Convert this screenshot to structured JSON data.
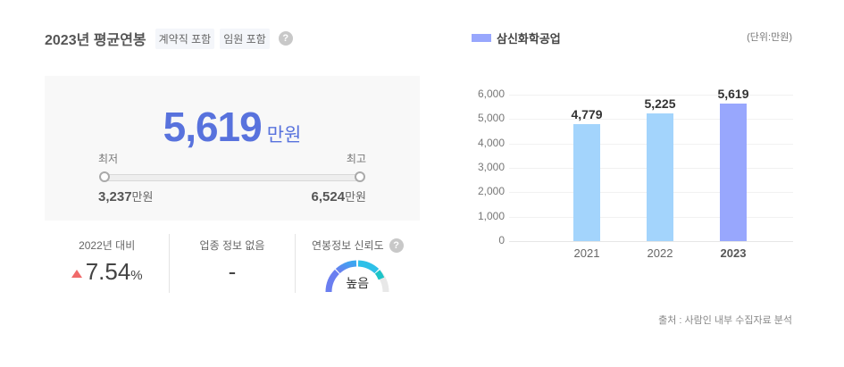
{
  "header": {
    "title": "2023년 평균연봉",
    "tags": [
      "계약직 포함",
      "임원 포함"
    ],
    "help_icon": "?"
  },
  "summary": {
    "average": "5,619",
    "average_unit": "만원",
    "min_label": "최저",
    "max_label": "최고",
    "min_value": "3,237",
    "max_value": "6,524",
    "value_unit": "만원"
  },
  "stats": {
    "yoy_label": "2022년 대비",
    "yoy_value": "7.54",
    "yoy_unit": "%",
    "yoy_direction": "up",
    "industry_label": "업종 정보 없음",
    "industry_value": "-",
    "reliability_label": "연봉정보 신뢰도",
    "reliability_value": "높음"
  },
  "chart_panel": {
    "legend_label": "삼신화학공업",
    "unit_label": "(단위:만원)",
    "source": "출처 : 사람인 내부 수집자료 분석"
  },
  "colors": {
    "accent": "#5872dd",
    "bar_past": "#a3d4fc",
    "bar_current": "#98a7fd",
    "up_arrow": "#f06a6a"
  },
  "chart_data": {
    "type": "bar",
    "title": "삼신화학공업",
    "categories": [
      "2021",
      "2022",
      "2023"
    ],
    "values": [
      4779,
      5225,
      5619
    ],
    "value_labels": [
      "4,779",
      "5,225",
      "5,619"
    ],
    "xlabel": "",
    "ylabel": "(단위:만원)",
    "ylim": [
      0,
      6000
    ],
    "yticks": [
      "0",
      "1,000",
      "2,000",
      "3,000",
      "4,000",
      "5,000",
      "6,000"
    ],
    "grid": true,
    "legend_position": "top-left",
    "highlight_category": "2023"
  }
}
